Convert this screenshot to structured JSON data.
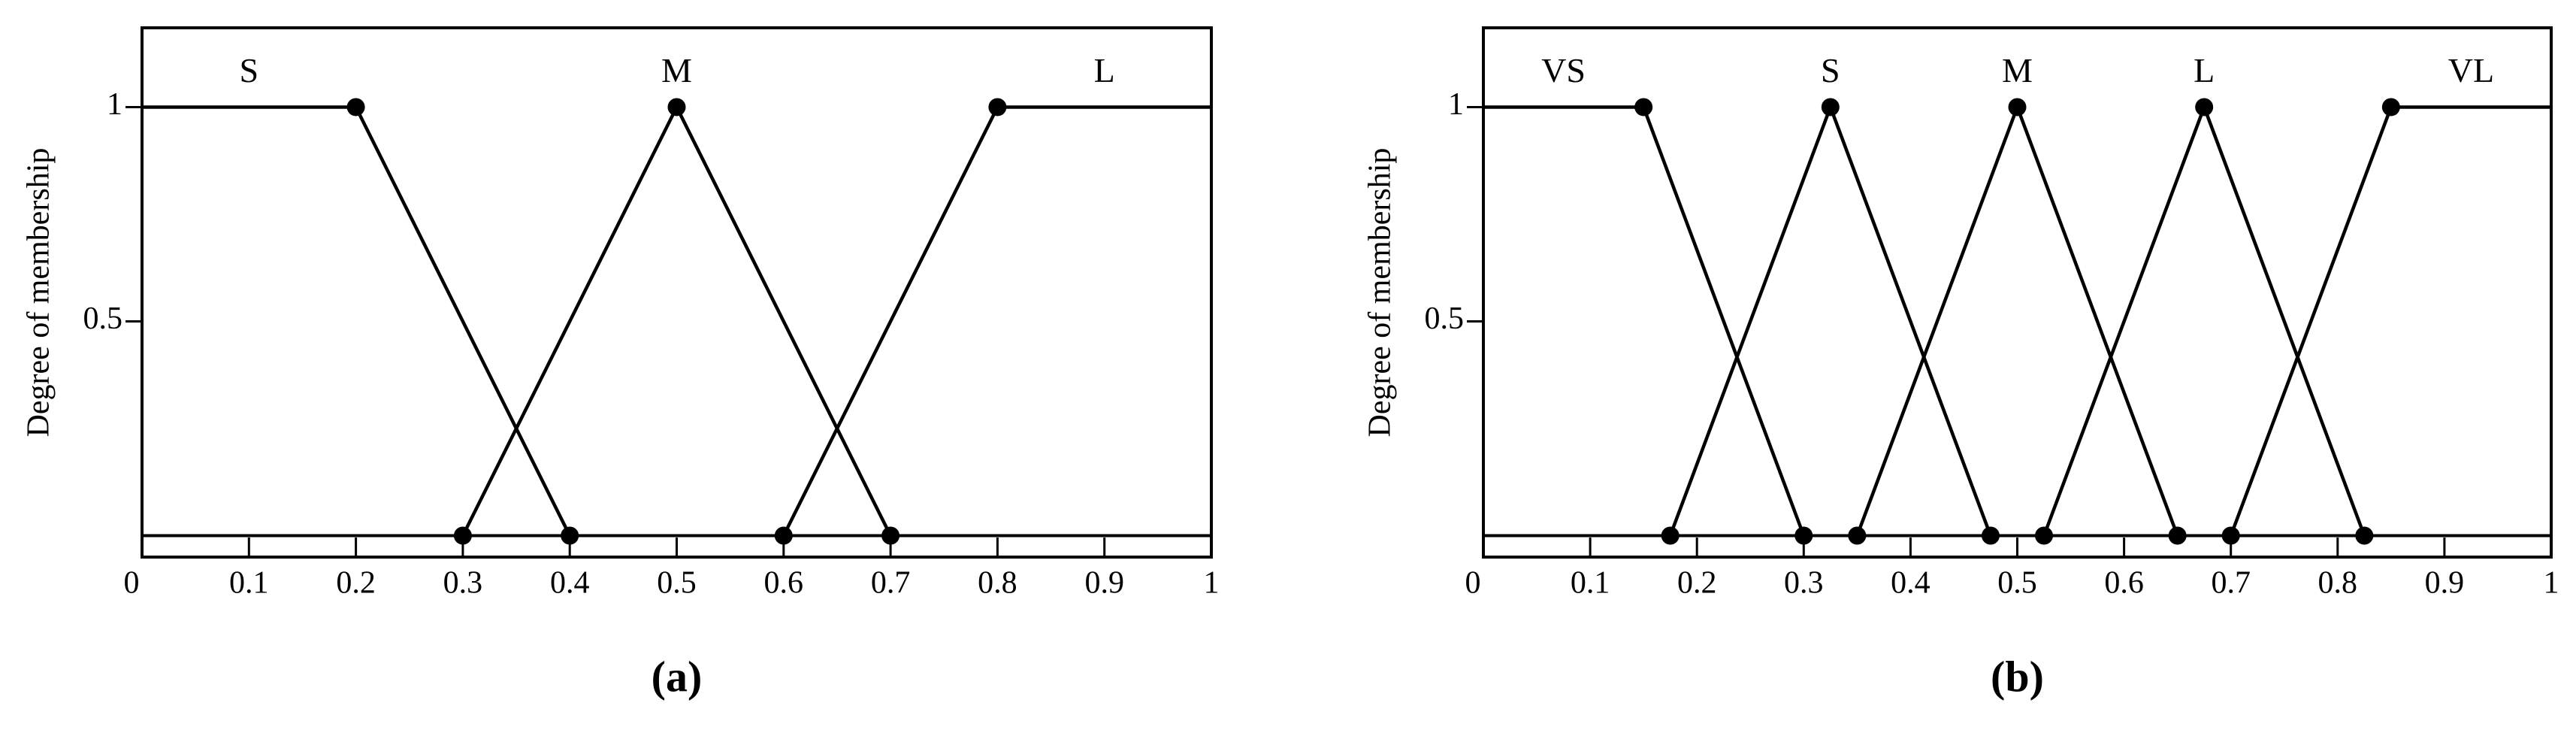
{
  "chart_data": [
    {
      "type": "line",
      "caption": "(a)",
      "y_label": "Degree of membership",
      "xlim": [
        0,
        1
      ],
      "ylim": [
        -0.05,
        1.185
      ],
      "xticks": [
        0,
        0.1,
        0.2,
        0.3,
        0.4,
        0.5,
        0.6,
        0.7,
        0.8,
        0.9,
        1
      ],
      "yticks": [
        0.5,
        1
      ],
      "series": [
        {
          "name": "S",
          "color": "#000000",
          "x": [
            0,
            0.2,
            0.4
          ],
          "values": [
            1,
            1,
            0
          ]
        },
        {
          "name": "M",
          "color": "#000000",
          "x": [
            0.3,
            0.5,
            0.7
          ],
          "values": [
            0,
            1,
            0
          ]
        },
        {
          "name": "L",
          "color": "#000000",
          "x": [
            0.6,
            0.8,
            1
          ],
          "values": [
            0,
            1,
            1
          ]
        }
      ]
    },
    {
      "type": "line",
      "caption": "(b)",
      "y_label": "Degree of membership",
      "xlim": [
        0,
        1
      ],
      "ylim": [
        -0.05,
        1.185
      ],
      "xticks": [
        0,
        0.1,
        0.2,
        0.3,
        0.4,
        0.5,
        0.6,
        0.7,
        0.8,
        0.9,
        1
      ],
      "yticks": [
        0.5,
        1
      ],
      "series": [
        {
          "name": "VS",
          "color": "#000000",
          "x": [
            0,
            0.15,
            0.3
          ],
          "values": [
            1,
            1,
            0
          ]
        },
        {
          "name": "S",
          "color": "#000000",
          "x": [
            0.175,
            0.325,
            0.475
          ],
          "values": [
            0,
            1,
            0
          ]
        },
        {
          "name": "M",
          "color": "#000000",
          "x": [
            0.35,
            0.5,
            0.65
          ],
          "values": [
            0,
            1,
            0
          ]
        },
        {
          "name": "L",
          "color": "#000000",
          "x": [
            0.525,
            0.675,
            0.825
          ],
          "values": [
            0,
            1,
            0
          ]
        },
        {
          "name": "VL",
          "color": "#000000",
          "x": [
            0.7,
            0.85,
            1
          ],
          "values": [
            0,
            1,
            1
          ]
        }
      ]
    }
  ]
}
